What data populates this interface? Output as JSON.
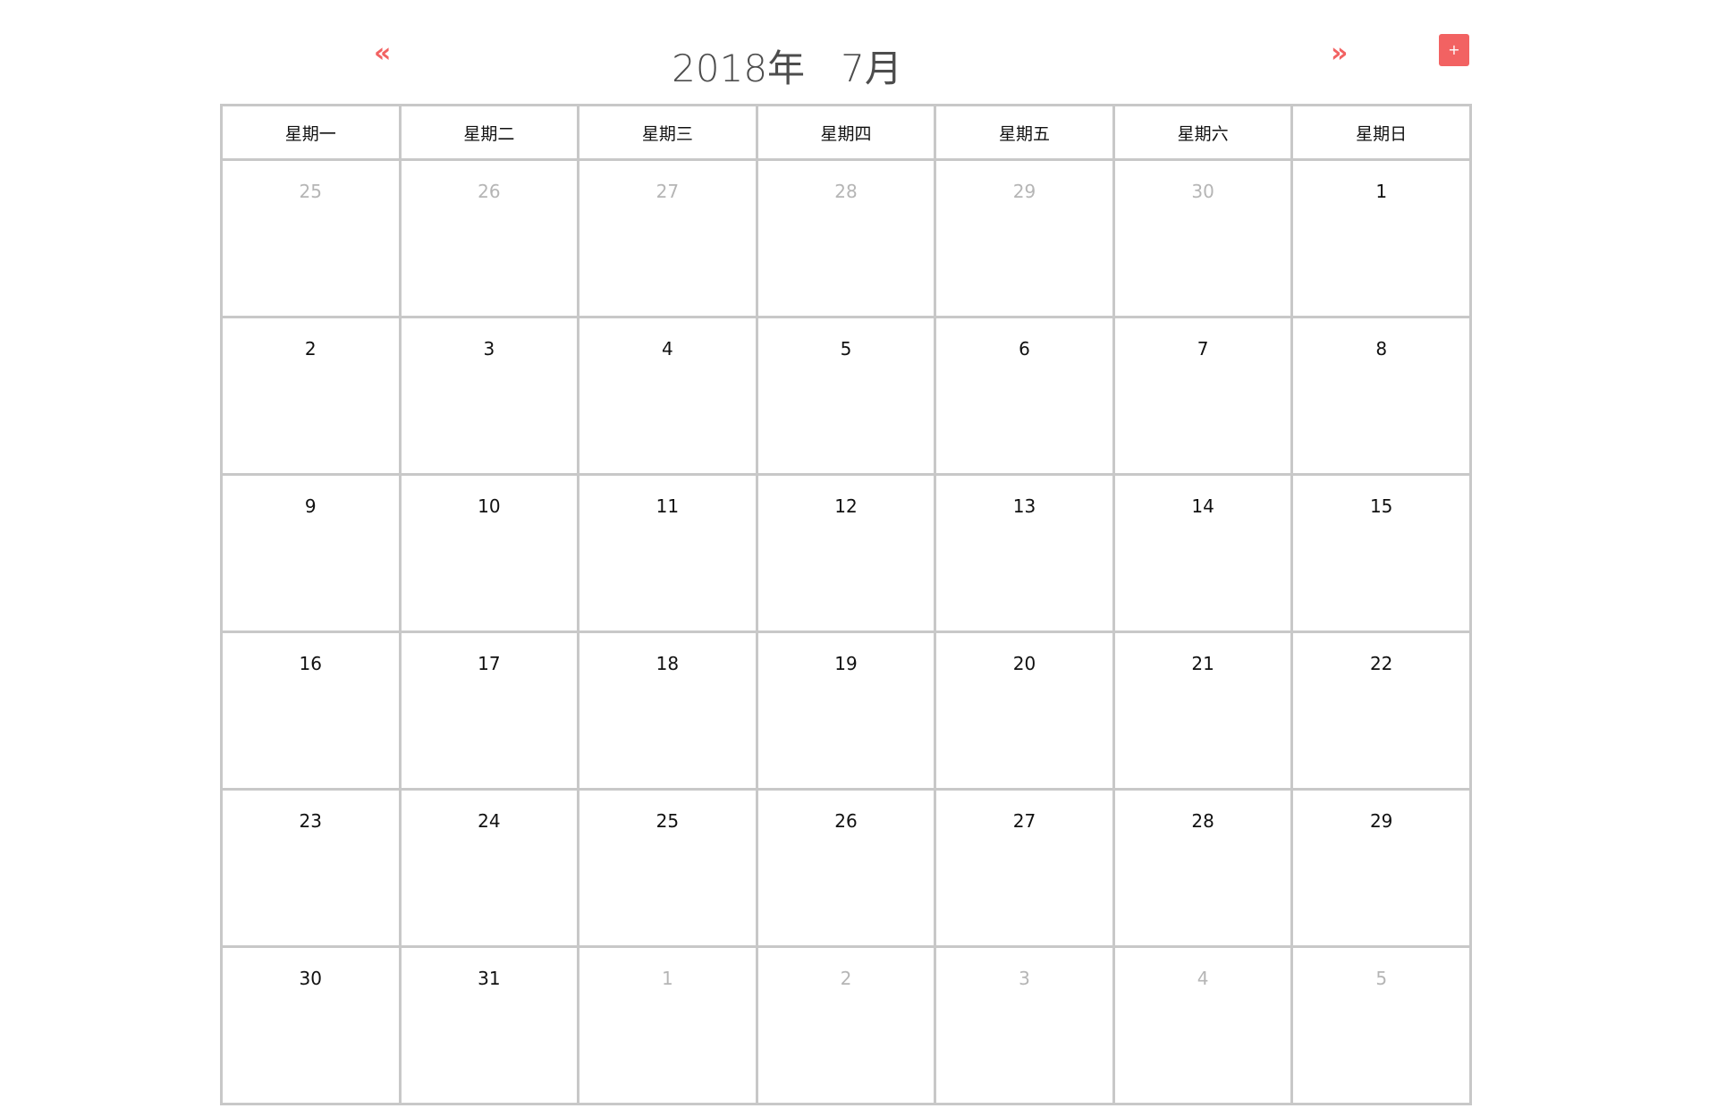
{
  "header": {
    "prev_label": "«",
    "next_label": "»",
    "title": "2018年   7月",
    "add_label": "+"
  },
  "weekdays": [
    "星期一",
    "星期二",
    "星期三",
    "星期四",
    "星期五",
    "星期六",
    "星期日"
  ],
  "weeks": [
    [
      {
        "day": "25",
        "other": true
      },
      {
        "day": "26",
        "other": true
      },
      {
        "day": "27",
        "other": true
      },
      {
        "day": "28",
        "other": true
      },
      {
        "day": "29",
        "other": true
      },
      {
        "day": "30",
        "other": true
      },
      {
        "day": "1",
        "other": false
      }
    ],
    [
      {
        "day": "2",
        "other": false
      },
      {
        "day": "3",
        "other": false
      },
      {
        "day": "4",
        "other": false
      },
      {
        "day": "5",
        "other": false
      },
      {
        "day": "6",
        "other": false
      },
      {
        "day": "7",
        "other": false
      },
      {
        "day": "8",
        "other": false
      }
    ],
    [
      {
        "day": "9",
        "other": false
      },
      {
        "day": "10",
        "other": false
      },
      {
        "day": "11",
        "other": false
      },
      {
        "day": "12",
        "other": false
      },
      {
        "day": "13",
        "other": false
      },
      {
        "day": "14",
        "other": false
      },
      {
        "day": "15",
        "other": false
      }
    ],
    [
      {
        "day": "16",
        "other": false
      },
      {
        "day": "17",
        "other": false
      },
      {
        "day": "18",
        "other": false
      },
      {
        "day": "19",
        "other": false
      },
      {
        "day": "20",
        "other": false
      },
      {
        "day": "21",
        "other": false
      },
      {
        "day": "22",
        "other": false
      }
    ],
    [
      {
        "day": "23",
        "other": false
      },
      {
        "day": "24",
        "other": false
      },
      {
        "day": "25",
        "other": false
      },
      {
        "day": "26",
        "other": false
      },
      {
        "day": "27",
        "other": false
      },
      {
        "day": "28",
        "other": false
      },
      {
        "day": "29",
        "other": false
      }
    ],
    [
      {
        "day": "30",
        "other": false
      },
      {
        "day": "31",
        "other": false
      },
      {
        "day": "1",
        "other": true
      },
      {
        "day": "2",
        "other": true
      },
      {
        "day": "3",
        "other": true
      },
      {
        "day": "4",
        "other": true
      },
      {
        "day": "5",
        "other": true
      }
    ]
  ],
  "colors": {
    "accent": "#f26262",
    "grid": "#c8c8c8",
    "title": "#4d4d4d",
    "other_month_text": "#b5b5b5",
    "text": "#111111"
  }
}
